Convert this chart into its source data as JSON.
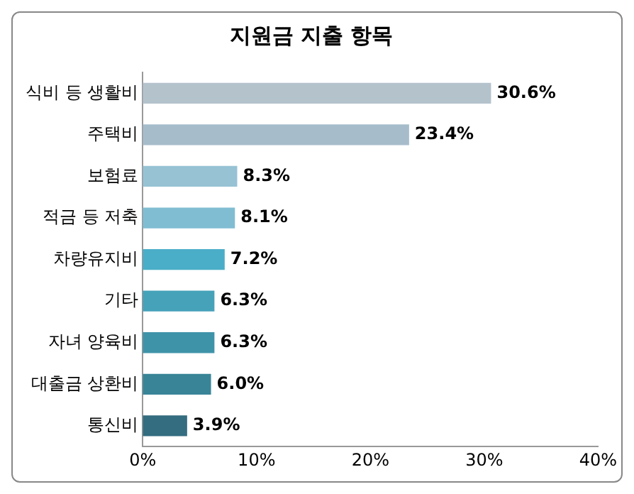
{
  "chart_data": {
    "type": "bar",
    "orientation": "horizontal",
    "title": "지원금 지출 항목",
    "categories": [
      "식비 등 생활비",
      "주택비",
      "보험료",
      "적금 등 저축",
      "차량유지비",
      "기타",
      "자녀 양육비",
      "대출금 상환비",
      "통신비"
    ],
    "values": [
      30.6,
      23.4,
      8.3,
      8.1,
      7.2,
      6.3,
      6.3,
      6.0,
      3.9
    ],
    "value_labels": [
      "30.6%",
      "23.4%",
      "8.3%",
      "8.1%",
      "7.2%",
      "6.3%",
      "6.3%",
      "6.0%",
      "3.9%"
    ],
    "colors": [
      "#b4c2cc",
      "#a6bccb",
      "#96c2d4",
      "#80bdd2",
      "#4aaec8",
      "#45a2b9",
      "#3f93a9",
      "#398497",
      "#336d7f"
    ],
    "xlim": [
      0,
      40
    ],
    "xticks": [
      {
        "value": 0,
        "label": "0%"
      },
      {
        "value": 10,
        "label": "10%"
      },
      {
        "value": 20,
        "label": "20%"
      },
      {
        "value": 30,
        "label": "30%"
      },
      {
        "value": 40,
        "label": "40%"
      }
    ],
    "grid": false,
    "legend": false
  }
}
